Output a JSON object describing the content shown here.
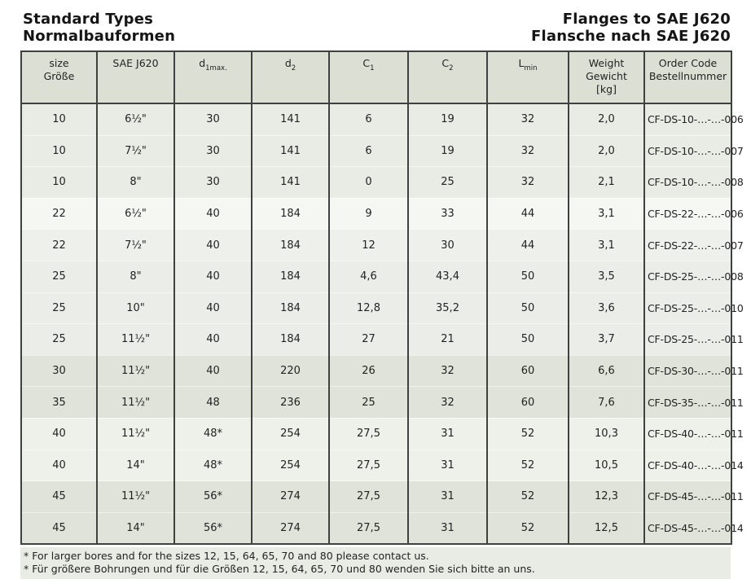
{
  "titles": {
    "left_line1": "Standard Types",
    "left_line2": "Normalbauformen",
    "right_line1": "Flanges to SAE J620",
    "right_line2": "Flansche nach SAE J620"
  },
  "table": {
    "columns": [
      {
        "id": "size",
        "lines": [
          {
            "text": "size"
          },
          {
            "text": "Größe"
          }
        ]
      },
      {
        "id": "sae-j620",
        "lines": [
          {
            "text": "SAE J620"
          }
        ]
      },
      {
        "id": "d1max",
        "lines": [
          {
            "text": "d",
            "sub": "1max."
          }
        ]
      },
      {
        "id": "d2",
        "lines": [
          {
            "text": "d",
            "sub": "2"
          }
        ]
      },
      {
        "id": "c1",
        "lines": [
          {
            "text": "C",
            "sub": "1"
          }
        ]
      },
      {
        "id": "c2",
        "lines": [
          {
            "text": "C",
            "sub": "2"
          }
        ]
      },
      {
        "id": "lmin",
        "lines": [
          {
            "text": "L",
            "sub": "min"
          }
        ]
      },
      {
        "id": "weight",
        "lines": [
          {
            "text": "Weight"
          },
          {
            "text": "Gewicht"
          },
          {
            "text": "[kg]"
          }
        ]
      },
      {
        "id": "order-code",
        "lines": [
          {
            "text": "Order Code"
          },
          {
            "text": "Bestellnummer"
          }
        ]
      }
    ],
    "rows": [
      {
        "shade": "g10",
        "cells": [
          "10",
          "6½\"",
          "30",
          "141",
          "6",
          "19",
          "32",
          "2,0",
          "CF-DS-10-…-…-006"
        ]
      },
      {
        "shade": "g10",
        "cells": [
          "10",
          "7½\"",
          "30",
          "141",
          "6",
          "19",
          "32",
          "2,0",
          "CF-DS-10-…-…-007"
        ]
      },
      {
        "shade": "g10",
        "cells": [
          "10",
          "8\"",
          "30",
          "141",
          "0",
          "25",
          "32",
          "2,1",
          "CF-DS-10-…-…-008"
        ]
      },
      {
        "shade": "g22",
        "cells": [
          "22",
          "6½\"",
          "40",
          "184",
          "9",
          "33",
          "44",
          "3,1",
          "CF-DS-22-…-…-006"
        ]
      },
      {
        "shade": "g22b",
        "cells": [
          "22",
          "7½\"",
          "40",
          "184",
          "12",
          "30",
          "44",
          "3,1",
          "CF-DS-22-…-…-007"
        ]
      },
      {
        "shade": "g25",
        "cells": [
          "25",
          "8\"",
          "40",
          "184",
          "4,6",
          "43,4",
          "50",
          "3,5",
          "CF-DS-25-…-…-008"
        ]
      },
      {
        "shade": "g25",
        "cells": [
          "25",
          "10\"",
          "40",
          "184",
          "12,8",
          "35,2",
          "50",
          "3,6",
          "CF-DS-25-…-…-010"
        ]
      },
      {
        "shade": "g25",
        "cells": [
          "25",
          "11½\"",
          "40",
          "184",
          "27",
          "21",
          "50",
          "3,7",
          "CF-DS-25-…-…-011"
        ]
      },
      {
        "shade": "g30",
        "cells": [
          "30",
          "11½\"",
          "40",
          "220",
          "26",
          "32",
          "60",
          "6,6",
          "CF-DS-30-…-…-011"
        ]
      },
      {
        "shade": "g30",
        "cells": [
          "35",
          "11½\"",
          "48",
          "236",
          "25",
          "32",
          "60",
          "7,6",
          "CF-DS-35-…-…-011"
        ]
      },
      {
        "shade": "g40",
        "cells": [
          "40",
          "11½\"",
          "48*",
          "254",
          "27,5",
          "31",
          "52",
          "10,3",
          "CF-DS-40-…-…-011"
        ]
      },
      {
        "shade": "g40",
        "cells": [
          "40",
          "14\"",
          "48*",
          "254",
          "27,5",
          "31",
          "52",
          "10,5",
          "CF-DS-40-…-…-014"
        ]
      },
      {
        "shade": "g45",
        "cells": [
          "45",
          "11½\"",
          "56*",
          "274",
          "27,5",
          "31",
          "52",
          "12,3",
          "CF-DS-45-…-…-011"
        ]
      },
      {
        "shade": "g45",
        "cells": [
          "45",
          "14\"",
          "56*",
          "274",
          "27,5",
          "31",
          "52",
          "12,5",
          "CF-DS-45-…-…-014"
        ]
      }
    ]
  },
  "footnotes": {
    "en": "* For larger bores and for the sizes 12, 15, 64, 65, 70 and 80 please contact us.",
    "de": "* Für größere Bohrungen und für die Größen 12, 15, 64, 65, 70 und 80 wenden Sie sich bitte an uns."
  },
  "colors": {
    "border_dark": "#3f4140",
    "header_bg": "#dcdfd4",
    "footnote_bg": "#e9ece4",
    "row_shades": {
      "g10": "#e9ece5",
      "g22": "#f5f7f2",
      "g22b": "#eef1eb",
      "g25": "#ebeee8",
      "g30": "#dfe3d9",
      "g40": "#eef0ea",
      "g45": "#dfe3d9"
    }
  }
}
